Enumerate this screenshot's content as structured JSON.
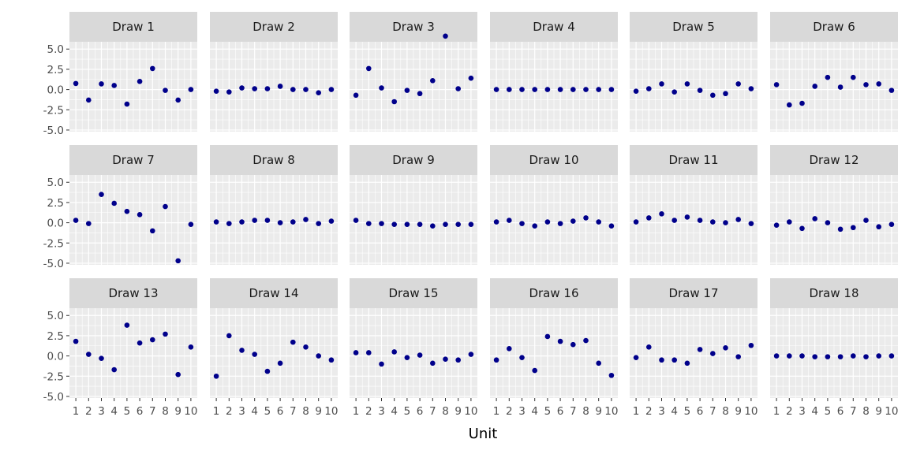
{
  "chart_data": {
    "type": "scatter",
    "title": "",
    "xlabel": "Unit",
    "ylabel": "",
    "xlim": [
      0.5,
      10.5
    ],
    "ylim": [
      -5.2,
      5.9
    ],
    "x": [
      1,
      2,
      3,
      4,
      5,
      6,
      7,
      8,
      9,
      10
    ],
    "x_tick_labels": [
      "1",
      "2",
      "3",
      "4",
      "5",
      "6",
      "7",
      "8",
      "9",
      "10"
    ],
    "y_ticks": [
      -5.0,
      -2.5,
      0.0,
      2.5,
      5.0
    ],
    "y_tick_labels": [
      "-5.0",
      "-2.5",
      "0.0",
      "2.5",
      "5.0"
    ],
    "grid": true,
    "layout": "facet grid, 3 rows x 6 columns, shared axes",
    "point_color": "#00008b",
    "panel_background": "#ebebeb",
    "strip_background": "#d9d9d9",
    "panels": [
      {
        "label": "Draw 1",
        "values": [
          0.75,
          -1.3,
          0.7,
          0.5,
          -1.8,
          1.0,
          2.6,
          -0.1,
          -1.3,
          0.0
        ]
      },
      {
        "label": "Draw 2",
        "values": [
          -0.2,
          -0.3,
          0.2,
          0.1,
          0.1,
          0.4,
          0.0,
          0.0,
          -0.4,
          0.0
        ]
      },
      {
        "label": "Draw 3",
        "values": [
          -0.7,
          2.6,
          0.2,
          -1.5,
          -0.1,
          -0.5,
          1.1,
          6.6,
          0.1,
          1.4
        ]
      },
      {
        "label": "Draw 4",
        "values": [
          0.0,
          0.0,
          0.0,
          0.0,
          0.0,
          0.0,
          0.0,
          0.0,
          0.0,
          0.0
        ]
      },
      {
        "label": "Draw 5",
        "values": [
          -0.2,
          0.1,
          0.7,
          -0.3,
          0.7,
          -0.1,
          -0.7,
          -0.5,
          0.7,
          0.1
        ]
      },
      {
        "label": "Draw 6",
        "values": [
          0.6,
          -1.9,
          -1.7,
          0.4,
          1.5,
          0.3,
          1.5,
          0.6,
          0.7,
          -0.1
        ]
      },
      {
        "label": "Draw 7",
        "values": [
          0.3,
          -0.1,
          3.5,
          2.4,
          1.4,
          1.0,
          -1.0,
          2.0,
          -4.7,
          -0.2
        ]
      },
      {
        "label": "Draw 8",
        "values": [
          0.1,
          -0.1,
          0.1,
          0.3,
          0.3,
          0.0,
          0.1,
          0.4,
          -0.1,
          0.2
        ]
      },
      {
        "label": "Draw 9",
        "values": [
          0.3,
          -0.1,
          -0.1,
          -0.2,
          -0.2,
          -0.2,
          -0.4,
          -0.2,
          -0.2,
          -0.2
        ]
      },
      {
        "label": "Draw 10",
        "values": [
          0.1,
          0.3,
          -0.1,
          -0.4,
          0.1,
          -0.1,
          0.2,
          0.6,
          0.1,
          -0.4
        ]
      },
      {
        "label": "Draw 11",
        "values": [
          0.1,
          0.6,
          1.1,
          0.3,
          0.7,
          0.3,
          0.1,
          0.0,
          0.4,
          -0.1
        ]
      },
      {
        "label": "Draw 12",
        "values": [
          -0.3,
          0.1,
          -0.7,
          0.5,
          0.0,
          -0.8,
          -0.6,
          0.3,
          -0.5,
          -0.2
        ]
      },
      {
        "label": "Draw 13",
        "values": [
          1.8,
          0.2,
          -0.3,
          -1.7,
          3.8,
          1.6,
          2.0,
          2.7,
          -2.3,
          1.1
        ]
      },
      {
        "label": "Draw 14",
        "values": [
          -2.5,
          2.5,
          0.7,
          0.2,
          -1.9,
          -0.9,
          1.7,
          1.1,
          0.0,
          -0.5
        ]
      },
      {
        "label": "Draw 15",
        "values": [
          0.4,
          0.4,
          -1.0,
          0.5,
          -0.2,
          0.1,
          -0.9,
          -0.4,
          -0.5,
          0.2
        ]
      },
      {
        "label": "Draw 16",
        "values": [
          -0.5,
          0.9,
          -0.2,
          -1.8,
          2.4,
          1.8,
          1.4,
          1.9,
          -0.9,
          -2.4
        ]
      },
      {
        "label": "Draw 17",
        "values": [
          -0.2,
          1.1,
          -0.5,
          -0.5,
          -0.9,
          0.8,
          0.3,
          1.0,
          -0.1,
          1.3
        ]
      },
      {
        "label": "Draw 18",
        "values": [
          0.0,
          0.0,
          0.0,
          -0.1,
          -0.1,
          -0.1,
          0.0,
          -0.1,
          0.0,
          0.0
        ]
      }
    ]
  }
}
